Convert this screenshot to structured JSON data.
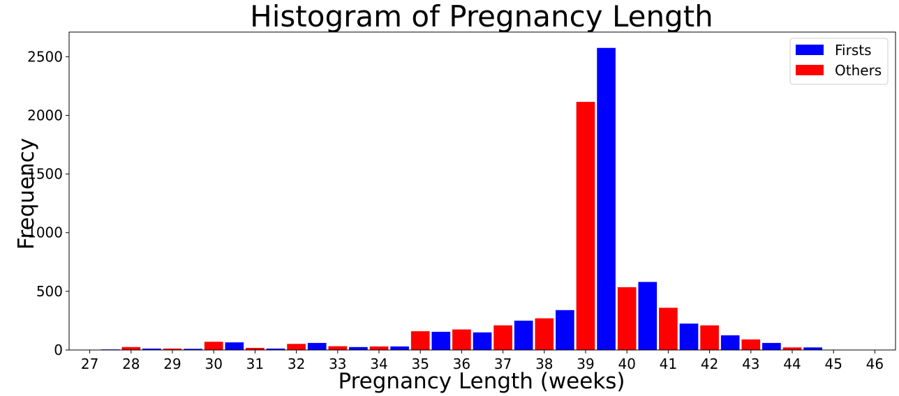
{
  "chart_data": {
    "type": "bar",
    "title": "Histogram of Pregnancy Length",
    "xlabel": "Pregnancy Length (weeks)",
    "ylabel": "Frequency",
    "xlim": [
      26.5,
      46.5
    ],
    "ylim": [
      0,
      2710
    ],
    "xticks": [
      27,
      28,
      29,
      30,
      31,
      32,
      33,
      34,
      35,
      36,
      37,
      38,
      39,
      40,
      41,
      42,
      43,
      44,
      45,
      46
    ],
    "yticks": [
      0,
      500,
      1000,
      1500,
      2000,
      2500
    ],
    "grid": false,
    "legend_position": "top-right",
    "series": [
      {
        "name": "Firsts",
        "color": "#0000ff",
        "x": [
          27.5,
          28.5,
          29.5,
          30.5,
          31.5,
          32.5,
          33.5,
          34.5,
          35.5,
          36.5,
          37.5,
          38.5,
          39.5,
          40.5,
          41.5,
          42.5,
          43.5,
          44.5
        ],
        "values": [
          5,
          12,
          10,
          65,
          12,
          60,
          25,
          30,
          155,
          150,
          250,
          340,
          2575,
          580,
          225,
          125,
          60,
          22
        ]
      },
      {
        "name": "Others",
        "color": "#ff0000",
        "x": [
          28,
          29,
          30,
          31,
          32,
          33,
          34,
          35,
          36,
          37,
          38,
          39,
          40,
          41,
          42,
          43,
          44
        ],
        "values": [
          25,
          12,
          70,
          18,
          52,
          32,
          30,
          160,
          175,
          210,
          270,
          2115,
          535,
          360,
          210,
          90,
          22
        ]
      }
    ]
  }
}
